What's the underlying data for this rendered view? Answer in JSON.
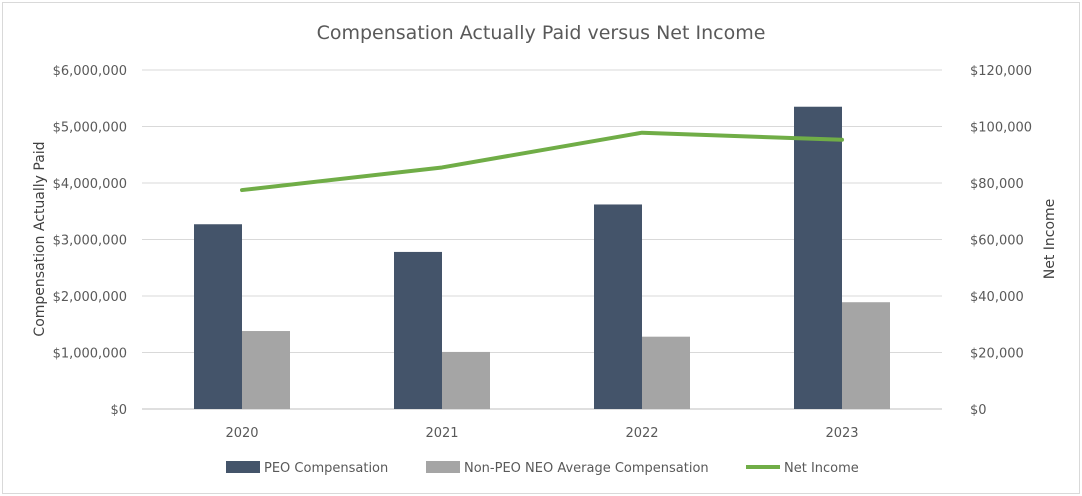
{
  "chart_data": {
    "type": "bar",
    "title": "Compensation Actually Paid versus Net Income",
    "categories": [
      "2020",
      "2021",
      "2022",
      "2023"
    ],
    "y_left": {
      "label": "Compensation Actually Paid",
      "range": [
        0,
        6000000
      ],
      "ticks": [
        "$0",
        "$1,000,000",
        "$2,000,000",
        "$3,000,000",
        "$4,000,000",
        "$5,000,000",
        "$6,000,000"
      ]
    },
    "y_right": {
      "label": "Net Income",
      "range": [
        0,
        120000
      ],
      "ticks": [
        "$0",
        "$20,000",
        "$40,000",
        "$60,000",
        "$80,000",
        "$100,000",
        "$120,000"
      ]
    },
    "series": [
      {
        "name": "PEO Compensation",
        "kind": "bar",
        "axis": "left",
        "color": "#44546a",
        "values": [
          3270000,
          2780000,
          3620000,
          5350000
        ]
      },
      {
        "name": "Non-PEO NEO Average Compensation",
        "kind": "bar",
        "axis": "left",
        "color": "#a5a5a5",
        "values": [
          1380000,
          1010000,
          1280000,
          1890000
        ]
      },
      {
        "name": "Net Income",
        "kind": "line",
        "axis": "right",
        "color": "#70ad47",
        "values": [
          77500,
          85500,
          97800,
          95300
        ]
      }
    ],
    "grid": true,
    "legend_position": "bottom"
  }
}
